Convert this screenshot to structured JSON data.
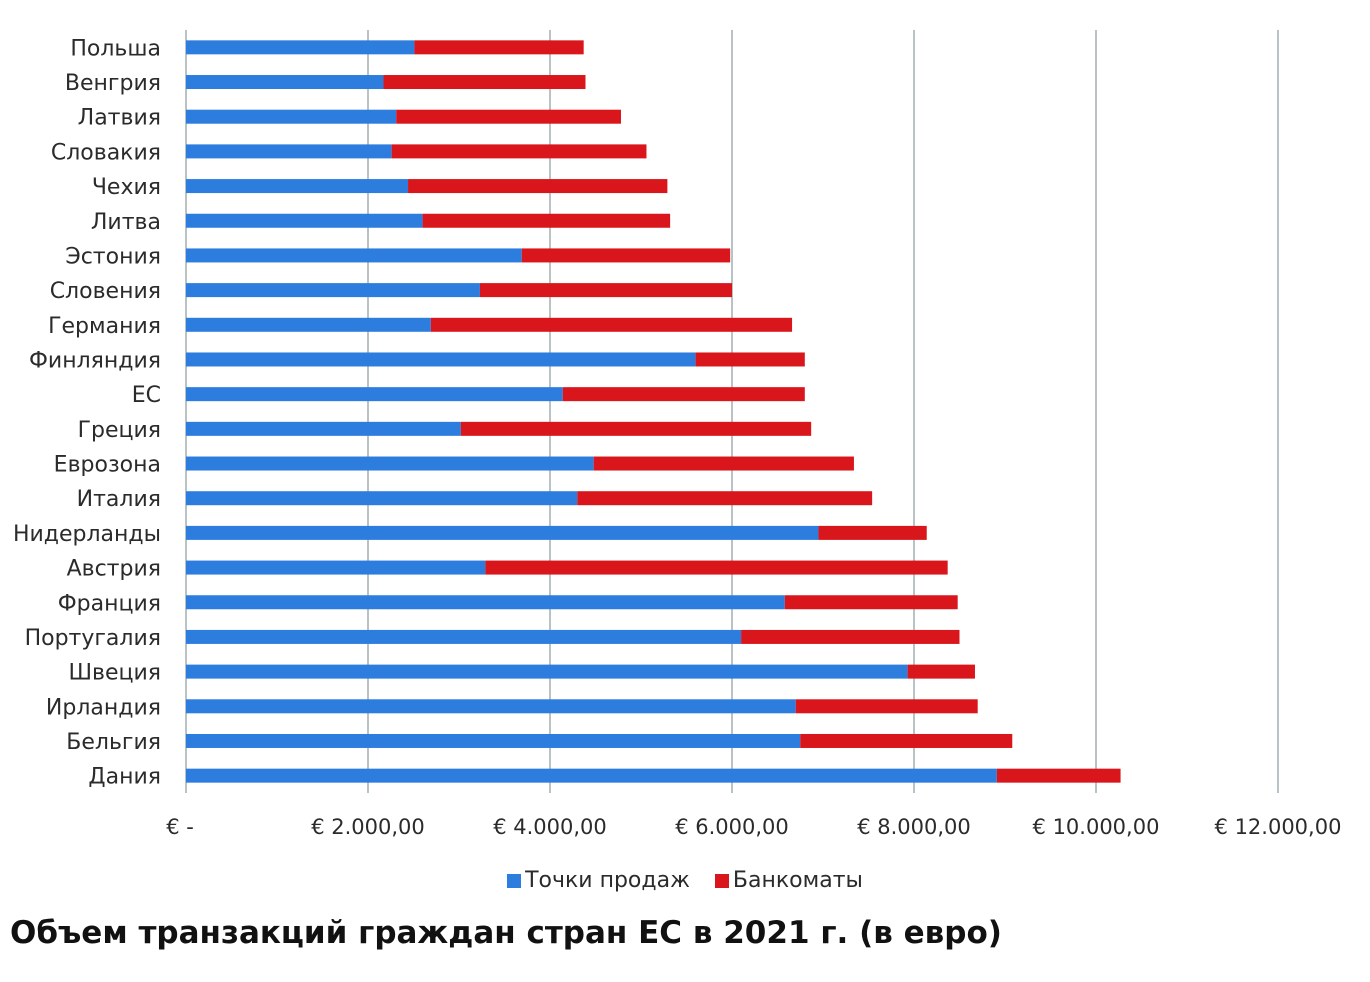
{
  "chart_data": {
    "type": "bar",
    "orientation": "horizontal",
    "stacked": true,
    "title": "Объем транзакций граждан стран ЕС в 2021 г. (в евро)",
    "categories": [
      "Польша",
      "Венгрия",
      "Латвия",
      "Словакия",
      "Чехия",
      "Литва",
      "Эстония",
      "Словения",
      "Германия",
      "Финляндия",
      "ЕС",
      "Греция",
      "Еврозона",
      "Италия",
      "Нидерланды",
      "Австрия",
      "Франция",
      "Португалия",
      "Швеция",
      "Ирландия",
      "Бельгия",
      "Дания"
    ],
    "series": [
      {
        "name": "Точки продаж",
        "color": "#2d7ddf",
        "values": [
          2510,
          2170,
          2310,
          2260,
          2440,
          2600,
          3690,
          3230,
          2690,
          5600,
          4140,
          3020,
          4480,
          4300,
          6950,
          3290,
          6580,
          6100,
          7930,
          6700,
          6750,
          8910
        ]
      },
      {
        "name": "Банкоматы",
        "color": "#d9161c",
        "values": [
          1860,
          2220,
          2470,
          2800,
          2850,
          2720,
          2290,
          2770,
          3970,
          1200,
          2660,
          3850,
          2860,
          3240,
          1190,
          5080,
          1900,
          2400,
          740,
          2000,
          2330,
          1360
        ]
      }
    ],
    "xlim": [
      0,
      12000
    ],
    "x_ticks": [
      "€ -",
      "€ 2.000,00",
      "€ 4.000,00",
      "€ 6.000,00",
      "€ 8.000,00",
      "€ 10.000,00",
      "€ 12.000,00"
    ],
    "legend_position": "bottom",
    "grid": true
  }
}
